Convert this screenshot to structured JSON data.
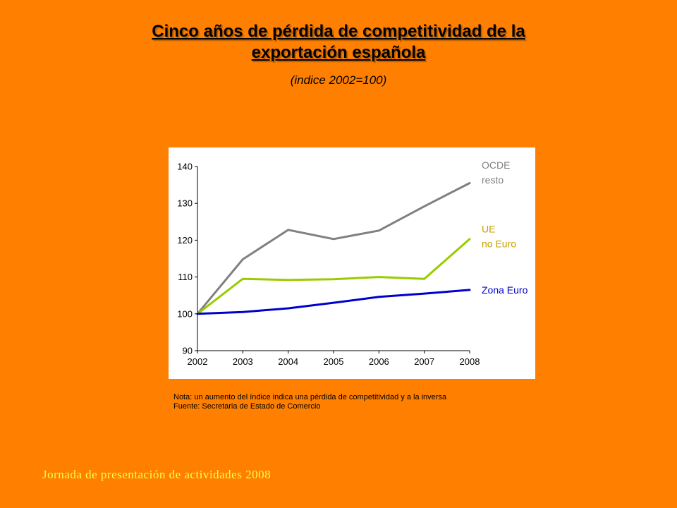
{
  "title": {
    "line1": "Cinco años de pérdida de competitividad de la",
    "line2": "exportación española"
  },
  "subtitle": "(indice 2002=100)",
  "chart_data": {
    "type": "line",
    "x": [
      2002,
      2003,
      2004,
      2005,
      2006,
      2007,
      2008
    ],
    "ylim": [
      90,
      140
    ],
    "yticks": [
      90,
      100,
      110,
      120,
      130,
      140
    ],
    "grid": false,
    "series": [
      {
        "name": "OCDE resto",
        "label_lines": [
          "OCDE",
          "resto"
        ],
        "color": "#808080",
        "label_color": "#808080",
        "values": [
          100,
          114.8,
          122.8,
          120.3,
          122.6,
          129.2,
          135.5
        ]
      },
      {
        "name": "UE no Euro",
        "label_lines": [
          "UE",
          "no Euro"
        ],
        "color": "#99cc00",
        "label_color": "#c8a000",
        "values": [
          100,
          109.5,
          109.2,
          109.4,
          110.0,
          109.5,
          120.3
        ]
      },
      {
        "name": "Zona Euro",
        "label_lines": [
          "Zona Euro"
        ],
        "color": "#0000cc",
        "label_color": "#0000cc",
        "values": [
          100,
          100.5,
          101.5,
          103.0,
          104.6,
          105.5,
          106.5
        ]
      }
    ]
  },
  "notes": {
    "nota": "Nota: un aumento del índice indica una pérdida de competitividad y a la inversa",
    "fuente": "Fuente: Secretaria  de Estado de Comercio"
  },
  "footer": "Jornada de presentación de actividades 2008",
  "colors": {
    "background": "#ff8000",
    "footer_text": "#ffff40"
  }
}
